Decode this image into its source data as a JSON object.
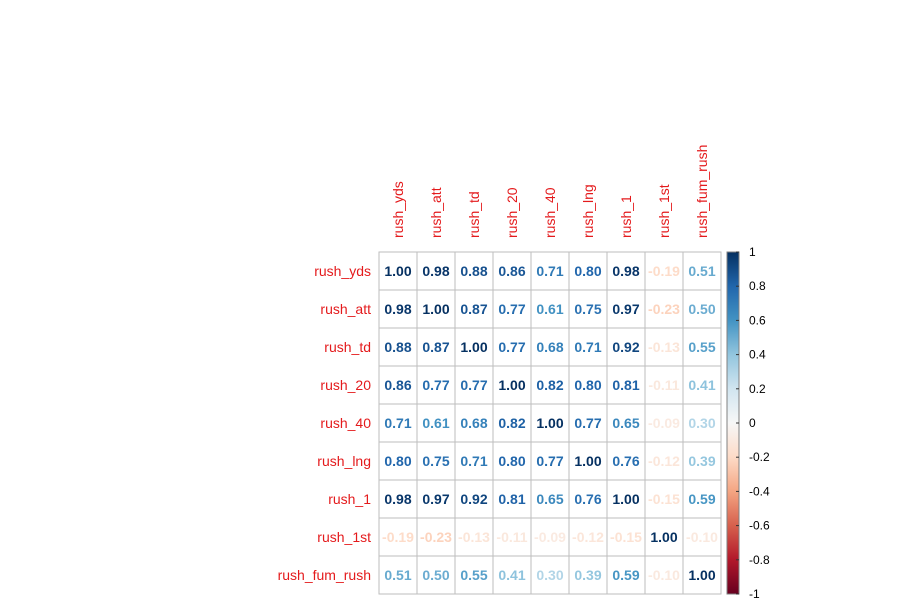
{
  "chart_data": {
    "type": "heatmap",
    "variables": [
      "rush_yds",
      "rush_att",
      "rush_td",
      "rush_20",
      "rush_40",
      "rush_lng",
      "rush_1",
      "rush_1st",
      "rush_fum_rush"
    ],
    "matrix": [
      [
        1.0,
        0.98,
        0.88,
        0.86,
        0.71,
        0.8,
        0.98,
        -0.19,
        0.51
      ],
      [
        0.98,
        1.0,
        0.87,
        0.77,
        0.61,
        0.75,
        0.97,
        -0.23,
        0.5
      ],
      [
        0.88,
        0.87,
        1.0,
        0.77,
        0.68,
        0.71,
        0.92,
        -0.13,
        0.55
      ],
      [
        0.86,
        0.77,
        0.77,
        1.0,
        0.82,
        0.8,
        0.81,
        -0.11,
        0.41
      ],
      [
        0.71,
        0.61,
        0.68,
        0.82,
        1.0,
        0.77,
        0.65,
        -0.09,
        0.3
      ],
      [
        0.8,
        0.75,
        0.71,
        0.8,
        0.77,
        1.0,
        0.76,
        -0.12,
        0.39
      ],
      [
        0.98,
        0.97,
        0.92,
        0.81,
        0.65,
        0.76,
        1.0,
        -0.15,
        0.59
      ],
      [
        -0.19,
        -0.23,
        -0.13,
        -0.11,
        -0.09,
        -0.12,
        -0.15,
        1.0,
        -0.1
      ],
      [
        0.51,
        0.5,
        0.55,
        0.41,
        0.3,
        0.39,
        0.59,
        -0.1,
        1.0
      ]
    ],
    "colorbar_range": [
      -1,
      1
    ],
    "colorbar_ticks": [
      "1",
      "0.8",
      "0.6",
      "0.4",
      "0.2",
      "0",
      "-0.2",
      "-0.4",
      "-0.6",
      "-0.8",
      "-1"
    ],
    "label_color": "#e41a1c",
    "colors": {
      "negative_end": "#67001f",
      "neutral": "#f7f7f7",
      "positive_end": "#053061",
      "grid": "#bebebe"
    }
  }
}
